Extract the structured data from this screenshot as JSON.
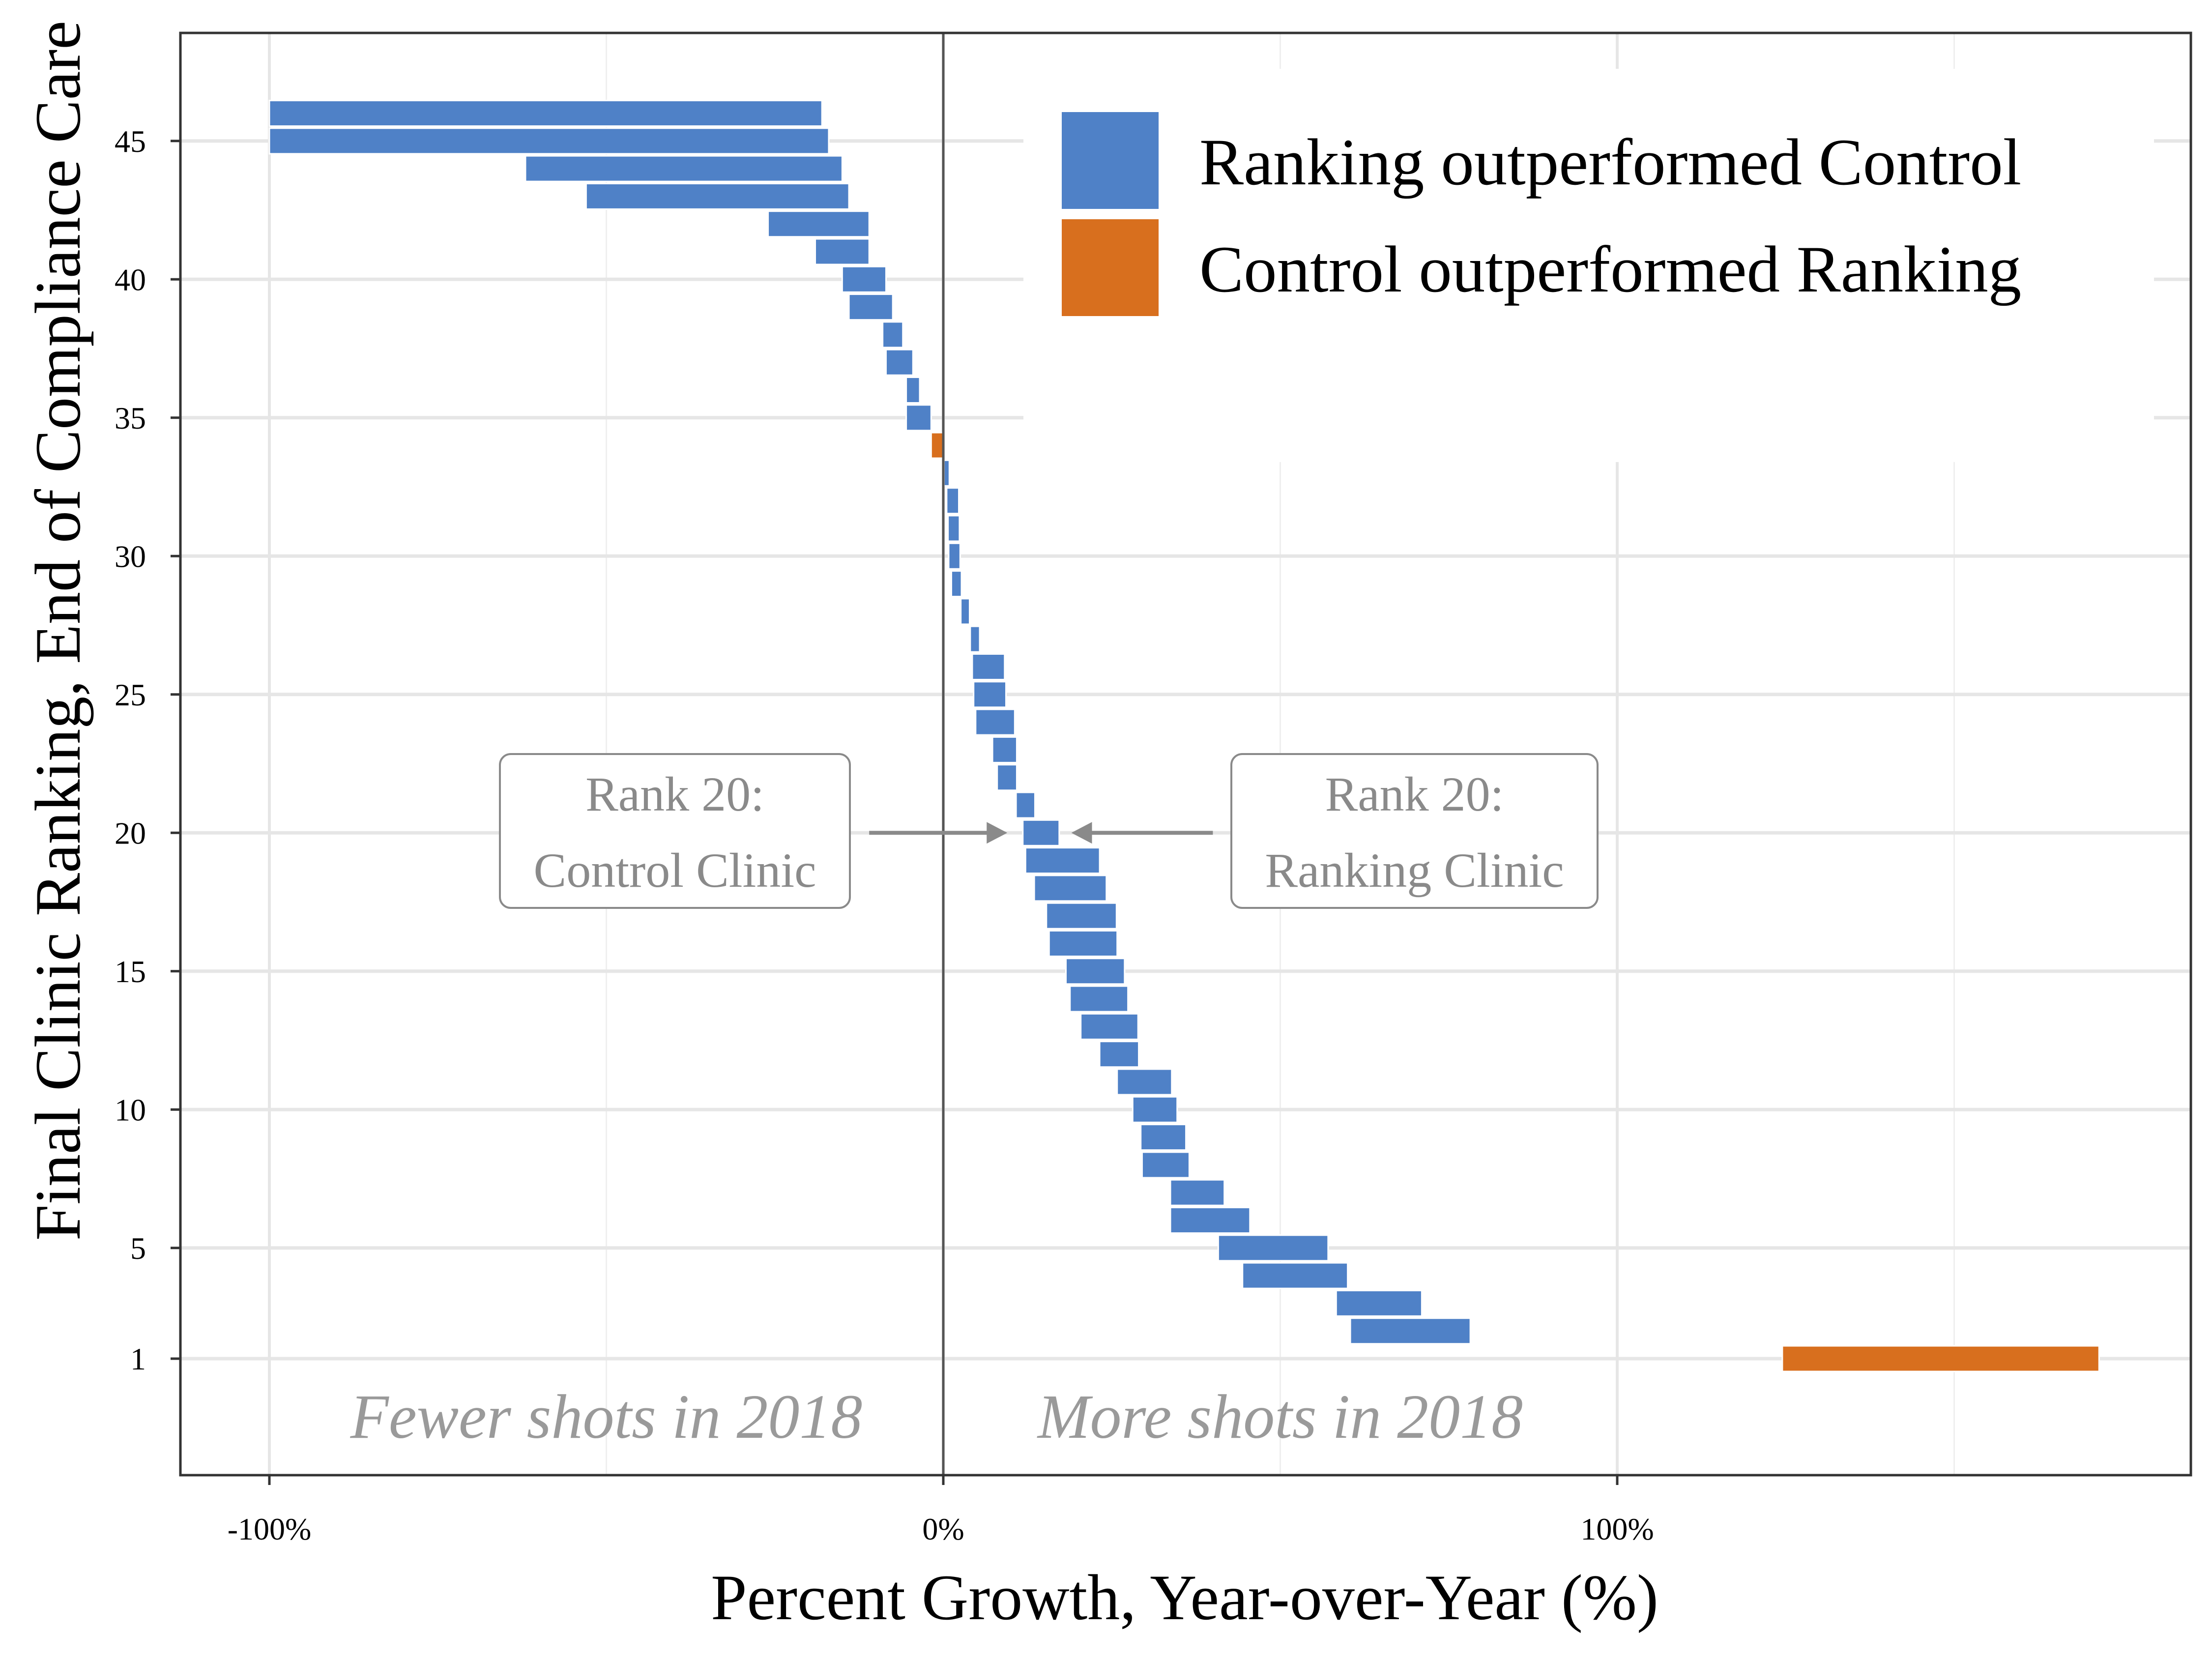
{
  "chart_data": {
    "type": "bar",
    "orientation": "horizontal",
    "xlabel": "Percent Growth, Year-over-Year (%)",
    "ylabel": "Final Clinic Ranking, End of Compliance Care",
    "xlim": [
      -115,
      185
    ],
    "ylim": [
      -3.5,
      48.5
    ],
    "x_ticks": [
      -100,
      0,
      100
    ],
    "x_tick_labels": [
      "-100%",
      "0%",
      "100%"
    ],
    "y_ticks": [
      1,
      5,
      10,
      15,
      20,
      25,
      30,
      35,
      40,
      45
    ],
    "y_tick_labels": [
      "1",
      "5",
      "10",
      "15",
      "20",
      "25",
      "30",
      "35",
      "40",
      "45"
    ],
    "grid": true,
    "legend_position": "top-right",
    "legend": [
      {
        "label": "Ranking outperformed Control",
        "color": "#4F81C7"
      },
      {
        "label": "Control outperformed Ranking",
        "color": "#D86F1E"
      }
    ],
    "region_labels": [
      {
        "text": "Fewer shots in 2018",
        "x": -50,
        "y": -1
      },
      {
        "text": "More shots in 2018",
        "x": 50,
        "y": -1
      }
    ],
    "annotations": [
      {
        "lines": [
          "Rank 20:",
          "Control Clinic"
        ],
        "side": "left",
        "arrow_from_x": -11,
        "arrow_to_x": 9.5,
        "y": 20
      },
      {
        "lines": [
          "Rank 20:",
          "Ranking Clinic"
        ],
        "side": "right",
        "arrow_from_x": 40,
        "arrow_to_x": 19,
        "y": 20
      }
    ],
    "series": [
      {
        "name": "Ranking outperformed Control",
        "color": "#4F81C7",
        "bars": [
          {
            "y": 46,
            "x0": -100,
            "x1": -18
          },
          {
            "y": 45,
            "x0": -100,
            "x1": -17
          },
          {
            "y": 44,
            "x0": -62,
            "x1": -15
          },
          {
            "y": 43,
            "x0": -53,
            "x1": -14
          },
          {
            "y": 42,
            "x0": -26,
            "x1": -11
          },
          {
            "y": 41,
            "x0": -19,
            "x1": -11
          },
          {
            "y": 40,
            "x0": -15,
            "x1": -8.5
          },
          {
            "y": 39,
            "x0": -14,
            "x1": -7.5
          },
          {
            "y": 38,
            "x0": -9,
            "x1": -6
          },
          {
            "y": 37,
            "x0": -8.5,
            "x1": -4.5
          },
          {
            "y": 36,
            "x0": -5.5,
            "x1": -3.5
          },
          {
            "y": 35,
            "x0": -5.5,
            "x1": -1.8
          },
          {
            "y": 33,
            "x0": 0.1,
            "x1": 0.9
          },
          {
            "y": 32,
            "x0": 0.5,
            "x1": 2.3
          },
          {
            "y": 31,
            "x0": 0.7,
            "x1": 2.4
          },
          {
            "y": 30,
            "x0": 0.8,
            "x1": 2.5
          },
          {
            "y": 29,
            "x0": 1.2,
            "x1": 2.7
          },
          {
            "y": 28,
            "x0": 2.6,
            "x1": 3.9
          },
          {
            "y": 27,
            "x0": 4.0,
            "x1": 5.4
          },
          {
            "y": 26,
            "x0": 4.3,
            "x1": 9.1
          },
          {
            "y": 25,
            "x0": 4.5,
            "x1": 9.3
          },
          {
            "y": 24,
            "x0": 4.8,
            "x1": 10.6
          },
          {
            "y": 23,
            "x0": 7.3,
            "x1": 10.9
          },
          {
            "y": 22,
            "x0": 8.0,
            "x1": 10.9
          },
          {
            "y": 21,
            "x0": 10.8,
            "x1": 13.6
          },
          {
            "y": 20,
            "x0": 11.8,
            "x1": 17.2
          },
          {
            "y": 19,
            "x0": 12.2,
            "x1": 23.2
          },
          {
            "y": 18,
            "x0": 13.5,
            "x1": 24.2
          },
          {
            "y": 17,
            "x0": 15.3,
            "x1": 25.7
          },
          {
            "y": 16,
            "x0": 15.7,
            "x1": 25.8
          },
          {
            "y": 15,
            "x0": 18.2,
            "x1": 26.9
          },
          {
            "y": 14,
            "x0": 18.8,
            "x1": 27.4
          },
          {
            "y": 13,
            "x0": 20.4,
            "x1": 28.9
          },
          {
            "y": 12,
            "x0": 23.2,
            "x1": 29.0
          },
          {
            "y": 11,
            "x0": 25.8,
            "x1": 33.9
          },
          {
            "y": 10,
            "x0": 28.1,
            "x1": 34.7
          },
          {
            "y": 9,
            "x0": 29.3,
            "x1": 36.0
          },
          {
            "y": 8,
            "x0": 29.5,
            "x1": 36.5
          },
          {
            "y": 7,
            "x0": 33.7,
            "x1": 41.7
          },
          {
            "y": 6,
            "x0": 33.7,
            "x1": 45.5
          },
          {
            "y": 5,
            "x0": 40.8,
            "x1": 57.1
          },
          {
            "y": 4,
            "x0": 44.4,
            "x1": 60.0
          },
          {
            "y": 3,
            "x0": 58.3,
            "x1": 71.0
          },
          {
            "y": 2,
            "x0": 60.4,
            "x1": 78.2
          }
        ]
      },
      {
        "name": "Control outperformed Ranking",
        "color": "#D86F1E",
        "bars": [
          {
            "y": 34,
            "x0": -1.8,
            "x1": 0
          },
          {
            "y": 1,
            "x0": 124.5,
            "x1": 171.5
          }
        ]
      }
    ]
  }
}
